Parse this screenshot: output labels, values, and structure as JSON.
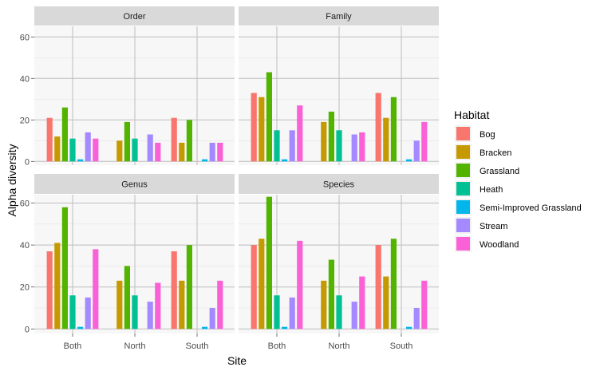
{
  "chart_data": {
    "type": "bar",
    "xlabel": "Site",
    "ylabel": "Alpha diversity",
    "ylim": [
      0,
      65
    ],
    "yticks": [
      0,
      20,
      40,
      60
    ],
    "categories": [
      "Both",
      "North",
      "South"
    ],
    "grid": true,
    "legend": {
      "title": "Habitat",
      "position": "right",
      "entries": [
        {
          "name": "Bog",
          "color": "#F8766D"
        },
        {
          "name": "Bracken",
          "color": "#C49A00"
        },
        {
          "name": "Grassland",
          "color": "#53B400"
        },
        {
          "name": "Heath",
          "color": "#00C094"
        },
        {
          "name": "Semi-Improved Grassland",
          "color": "#00B6EB"
        },
        {
          "name": "Stream",
          "color": "#A58AFF"
        },
        {
          "name": "Woodland",
          "color": "#FB61D7"
        }
      ]
    },
    "panels": [
      {
        "title": "Order",
        "series": [
          {
            "name": "Bog",
            "values": [
              21,
              null,
              21
            ]
          },
          {
            "name": "Bracken",
            "values": [
              12,
              10,
              9
            ]
          },
          {
            "name": "Grassland",
            "values": [
              26,
              19,
              20
            ]
          },
          {
            "name": "Heath",
            "values": [
              11,
              11,
              null
            ]
          },
          {
            "name": "Semi-Improved Grassland",
            "values": [
              1,
              null,
              1
            ]
          },
          {
            "name": "Stream",
            "values": [
              14,
              13,
              9
            ]
          },
          {
            "name": "Woodland",
            "values": [
              11,
              9,
              9
            ]
          }
        ]
      },
      {
        "title": "Family",
        "series": [
          {
            "name": "Bog",
            "values": [
              33,
              null,
              33
            ]
          },
          {
            "name": "Bracken",
            "values": [
              31,
              19,
              21
            ]
          },
          {
            "name": "Grassland",
            "values": [
              43,
              24,
              31
            ]
          },
          {
            "name": "Heath",
            "values": [
              15,
              15,
              null
            ]
          },
          {
            "name": "Semi-Improved Grassland",
            "values": [
              1,
              null,
              1
            ]
          },
          {
            "name": "Stream",
            "values": [
              15,
              13,
              10
            ]
          },
          {
            "name": "Woodland",
            "values": [
              27,
              14,
              19
            ]
          }
        ]
      },
      {
        "title": "Genus",
        "series": [
          {
            "name": "Bog",
            "values": [
              37,
              null,
              37
            ]
          },
          {
            "name": "Bracken",
            "values": [
              41,
              23,
              23
            ]
          },
          {
            "name": "Grassland",
            "values": [
              58,
              30,
              40
            ]
          },
          {
            "name": "Heath",
            "values": [
              16,
              16,
              null
            ]
          },
          {
            "name": "Semi-Improved Grassland",
            "values": [
              1,
              null,
              1
            ]
          },
          {
            "name": "Stream",
            "values": [
              15,
              13,
              10
            ]
          },
          {
            "name": "Woodland",
            "values": [
              38,
              22,
              23
            ]
          }
        ]
      },
      {
        "title": "Species",
        "series": [
          {
            "name": "Bog",
            "values": [
              40,
              null,
              40
            ]
          },
          {
            "name": "Bracken",
            "values": [
              43,
              23,
              25
            ]
          },
          {
            "name": "Grassland",
            "values": [
              63,
              33,
              43
            ]
          },
          {
            "name": "Heath",
            "values": [
              16,
              16,
              null
            ]
          },
          {
            "name": "Semi-Improved Grassland",
            "values": [
              1,
              null,
              1
            ]
          },
          {
            "name": "Stream",
            "values": [
              15,
              13,
              10
            ]
          },
          {
            "name": "Woodland",
            "values": [
              42,
              25,
              23
            ]
          }
        ]
      }
    ]
  }
}
